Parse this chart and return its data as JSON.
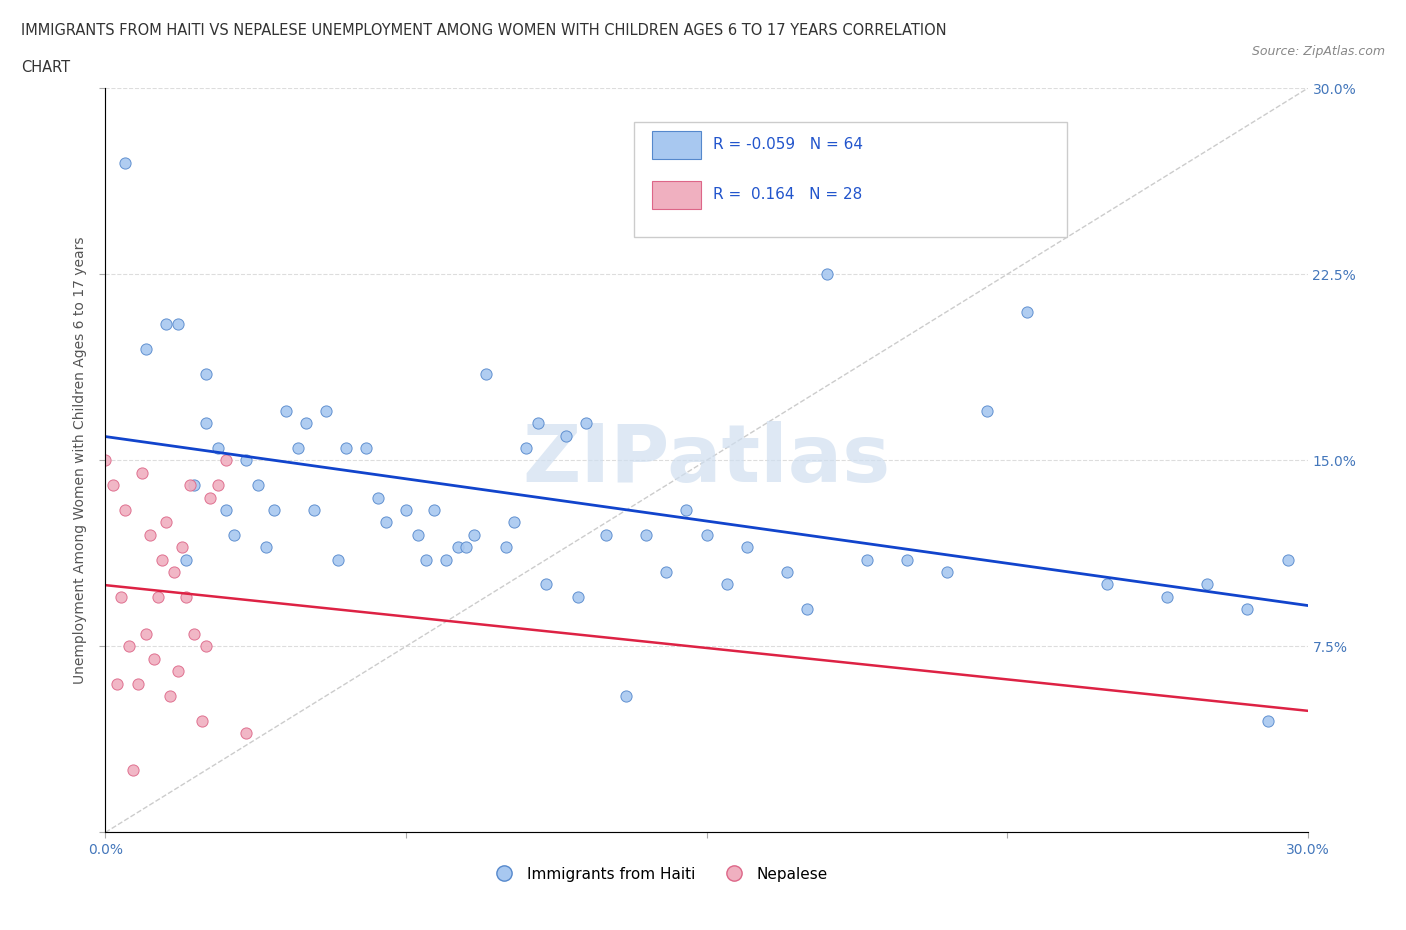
{
  "title_line1": "IMMIGRANTS FROM HAITI VS NEPALESE UNEMPLOYMENT AMONG WOMEN WITH CHILDREN AGES 6 TO 17 YEARS CORRELATION",
  "title_line2": "CHART",
  "source_text": "Source: ZipAtlas.com",
  "ylabel": "Unemployment Among Women with Children Ages 6 to 17 years",
  "xlim": [
    0.0,
    0.3
  ],
  "ylim": [
    0.0,
    0.3
  ],
  "xtick_vals": [
    0.0,
    0.075,
    0.15,
    0.225,
    0.3
  ],
  "ytick_vals": [
    0.0,
    0.075,
    0.15,
    0.225,
    0.3
  ],
  "legend_label1": "Immigrants from Haiti",
  "legend_label2": "Nepalese",
  "haiti_color": "#a8c8f0",
  "nepal_color": "#f0b0c0",
  "haiti_edge": "#5588cc",
  "nepal_edge": "#dd6688",
  "trend_haiti_color": "#1144cc",
  "trend_nepal_color": "#dd2244",
  "watermark": "ZIPatlas",
  "haiti_R": -0.059,
  "haiti_N": 64,
  "nepal_R": 0.164,
  "nepal_N": 28,
  "haiti_x": [
    0.005,
    0.01,
    0.015,
    0.018,
    0.02,
    0.022,
    0.025,
    0.025,
    0.028,
    0.03,
    0.032,
    0.035,
    0.038,
    0.04,
    0.042,
    0.045,
    0.048,
    0.05,
    0.052,
    0.055,
    0.058,
    0.06,
    0.065,
    0.068,
    0.07,
    0.075,
    0.078,
    0.08,
    0.082,
    0.085,
    0.088,
    0.09,
    0.092,
    0.095,
    0.1,
    0.102,
    0.105,
    0.108,
    0.11,
    0.115,
    0.118,
    0.12,
    0.125,
    0.13,
    0.135,
    0.14,
    0.145,
    0.15,
    0.155,
    0.16,
    0.17,
    0.175,
    0.18,
    0.19,
    0.2,
    0.21,
    0.22,
    0.23,
    0.25,
    0.265,
    0.275,
    0.285,
    0.29,
    0.295
  ],
  "haiti_y": [
    0.27,
    0.195,
    0.205,
    0.205,
    0.11,
    0.14,
    0.165,
    0.185,
    0.155,
    0.13,
    0.12,
    0.15,
    0.14,
    0.115,
    0.13,
    0.17,
    0.155,
    0.165,
    0.13,
    0.17,
    0.11,
    0.155,
    0.155,
    0.135,
    0.125,
    0.13,
    0.12,
    0.11,
    0.13,
    0.11,
    0.115,
    0.115,
    0.12,
    0.185,
    0.115,
    0.125,
    0.155,
    0.165,
    0.1,
    0.16,
    0.095,
    0.165,
    0.12,
    0.055,
    0.12,
    0.105,
    0.13,
    0.12,
    0.1,
    0.115,
    0.105,
    0.09,
    0.225,
    0.11,
    0.11,
    0.105,
    0.17,
    0.21,
    0.1,
    0.095,
    0.1,
    0.09,
    0.045,
    0.11
  ],
  "nepal_x": [
    0.0,
    0.002,
    0.003,
    0.004,
    0.005,
    0.006,
    0.007,
    0.008,
    0.009,
    0.01,
    0.011,
    0.012,
    0.013,
    0.014,
    0.015,
    0.016,
    0.017,
    0.018,
    0.019,
    0.02,
    0.021,
    0.022,
    0.024,
    0.025,
    0.026,
    0.028,
    0.03,
    0.035
  ],
  "nepal_y": [
    0.15,
    0.14,
    0.06,
    0.095,
    0.13,
    0.075,
    0.025,
    0.06,
    0.145,
    0.08,
    0.12,
    0.07,
    0.095,
    0.11,
    0.125,
    0.055,
    0.105,
    0.065,
    0.115,
    0.095,
    0.14,
    0.08,
    0.045,
    0.075,
    0.135,
    0.14,
    0.15,
    0.04
  ]
}
